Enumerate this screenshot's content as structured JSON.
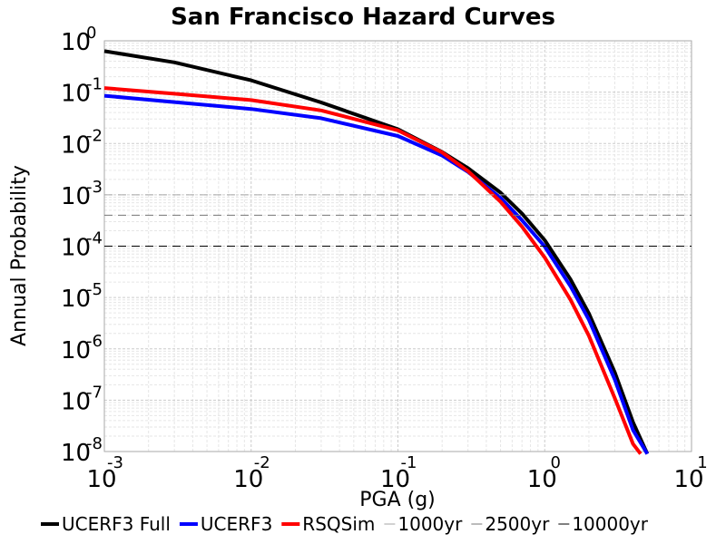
{
  "chart_data": {
    "type": "line",
    "title": "San Francisco Hazard Curves",
    "xlabel": "PGA (g)",
    "ylabel": "Annual Probability",
    "x_scale": "log",
    "y_scale": "log",
    "xlim": [
      0.001,
      10
    ],
    "ylim": [
      1e-08,
      1
    ],
    "x_ticks": [
      {
        "base": "10",
        "exp": "-3",
        "value": 0.001
      },
      {
        "base": "10",
        "exp": "-2",
        "value": 0.01
      },
      {
        "base": "10",
        "exp": "-1",
        "value": 0.1
      },
      {
        "base": "10",
        "exp": "0",
        "value": 1
      },
      {
        "base": "10",
        "exp": "1",
        "value": 10
      }
    ],
    "y_ticks": [
      {
        "base": "10",
        "exp": "0",
        "value": 1
      },
      {
        "base": "10",
        "exp": "-1",
        "value": 0.1
      },
      {
        "base": "10",
        "exp": "-2",
        "value": 0.01
      },
      {
        "base": "10",
        "exp": "-3",
        "value": 0.001
      },
      {
        "base": "10",
        "exp": "-4",
        "value": 0.0001
      },
      {
        "base": "10",
        "exp": "-5",
        "value": 1e-05
      },
      {
        "base": "10",
        "exp": "-6",
        "value": 1e-06
      },
      {
        "base": "10",
        "exp": "-7",
        "value": 1e-07
      },
      {
        "base": "10",
        "exp": "-8",
        "value": 1e-08
      }
    ],
    "grid": true,
    "legend_position": "bottom",
    "series": [
      {
        "name": "UCERF3 Full",
        "color": "#000000",
        "style": "solid",
        "x": [
          0.001,
          0.003,
          0.01,
          0.03,
          0.1,
          0.2,
          0.3,
          0.5,
          0.7,
          1.0,
          1.5,
          2.0,
          3.0,
          4.0,
          5.0
        ],
        "y": [
          0.63,
          0.38,
          0.17,
          0.063,
          0.019,
          0.0068,
          0.0033,
          0.0011,
          0.00043,
          0.00013,
          2.25e-05,
          4.9e-06,
          3.5e-07,
          3.7e-08,
          7e-09
        ]
      },
      {
        "name": "UCERF3",
        "color": "#0000ff",
        "style": "solid",
        "x": [
          0.001,
          0.003,
          0.01,
          0.03,
          0.1,
          0.2,
          0.3,
          0.5,
          0.7,
          1.0,
          1.5,
          2.0,
          3.0,
          4.0,
          5.0
        ],
        "y": [
          0.085,
          0.064,
          0.047,
          0.031,
          0.014,
          0.0058,
          0.0028,
          0.00087,
          0.00032,
          9.8e-05,
          1.65e-05,
          3.7e-06,
          2.55e-07,
          2.6e-08,
          8e-09
        ]
      },
      {
        "name": "RSQSim",
        "color": "#ff0000",
        "style": "solid",
        "x": [
          0.001,
          0.003,
          0.01,
          0.03,
          0.1,
          0.2,
          0.3,
          0.5,
          0.7,
          1.0,
          1.5,
          2.0,
          3.0,
          4.0,
          4.5
        ],
        "y": [
          0.12,
          0.093,
          0.07,
          0.044,
          0.018,
          0.0067,
          0.0029,
          0.00073,
          0.00024,
          6e-05,
          9e-06,
          1.8e-06,
          1.1e-07,
          1.4e-08,
          8e-09
        ]
      },
      {
        "name": "1000yr",
        "color": "#a6a6a6",
        "style": "dashed",
        "x": [
          0.001,
          10
        ],
        "y": [
          0.001,
          0.001
        ]
      },
      {
        "name": "2500yr",
        "color": "#777777",
        "style": "dashed",
        "x": [
          0.001,
          10
        ],
        "y": [
          0.0004,
          0.0004
        ]
      },
      {
        "name": "10000yr",
        "color": "#000000",
        "style": "dashed",
        "x": [
          0.001,
          10
        ],
        "y": [
          0.0001,
          0.0001
        ]
      }
    ]
  }
}
